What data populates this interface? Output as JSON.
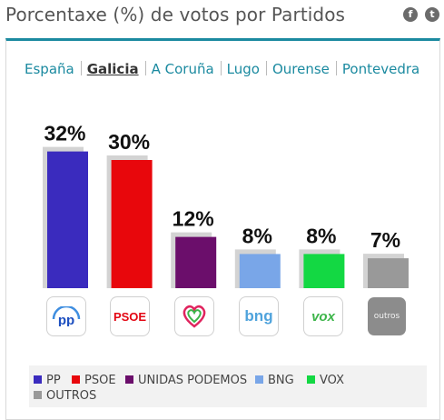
{
  "header": {
    "title": "Porcentaxe (%) de votos por Partidos",
    "facebook_glyph": "f",
    "twitter_glyph": "t"
  },
  "tabs": [
    {
      "label": "España",
      "active": false
    },
    {
      "label": "Galicia",
      "active": true
    },
    {
      "label": "A Coruña",
      "active": false
    },
    {
      "label": "Lugo",
      "active": false
    },
    {
      "label": "Ourense",
      "active": false
    },
    {
      "label": "Pontevedra",
      "active": false
    }
  ],
  "chart_data": {
    "type": "bar",
    "title": "Porcentaxe (%) de votos por Partidos",
    "categories": [
      "PP",
      "PSOE",
      "UNIDAS PODEMOS",
      "BNG",
      "VOX",
      "OUTROS"
    ],
    "values": [
      32,
      30,
      12,
      8,
      8,
      7
    ],
    "value_labels": [
      "32%",
      "30%",
      "12%",
      "8%",
      "8%",
      "7%"
    ],
    "colors": [
      "#3a2bbe",
      "#e8070c",
      "#6b0e6b",
      "#79a6e8",
      "#13d843",
      "#999999"
    ],
    "ylim": [
      0,
      35
    ],
    "grid": false,
    "legend_position": "bottom"
  },
  "logos": [
    {
      "party": "PP",
      "text": "pp",
      "color": "#1d4fc0"
    },
    {
      "party": "PSOE",
      "text": "PSOE",
      "color": "#e30613"
    },
    {
      "party": "UNIDAS PODEMOS",
      "text": "",
      "color": "#e0245e"
    },
    {
      "party": "BNG",
      "text": "bng",
      "color": "#4fa3dc"
    },
    {
      "party": "VOX",
      "text": "vox",
      "color": "#3db54a"
    },
    {
      "party": "OUTROS",
      "text": "outros",
      "color": "#8c8c8c"
    }
  ],
  "legend": [
    {
      "label": "PP",
      "color": "#3a2bbe"
    },
    {
      "label": "PSOE",
      "color": "#e8070c"
    },
    {
      "label": "UNIDAS PODEMOS",
      "color": "#6b0e6b"
    },
    {
      "label": "BNG",
      "color": "#79a6e8"
    },
    {
      "label": "VOX",
      "color": "#13d843"
    },
    {
      "label": "OUTROS",
      "color": "#999999"
    }
  ]
}
